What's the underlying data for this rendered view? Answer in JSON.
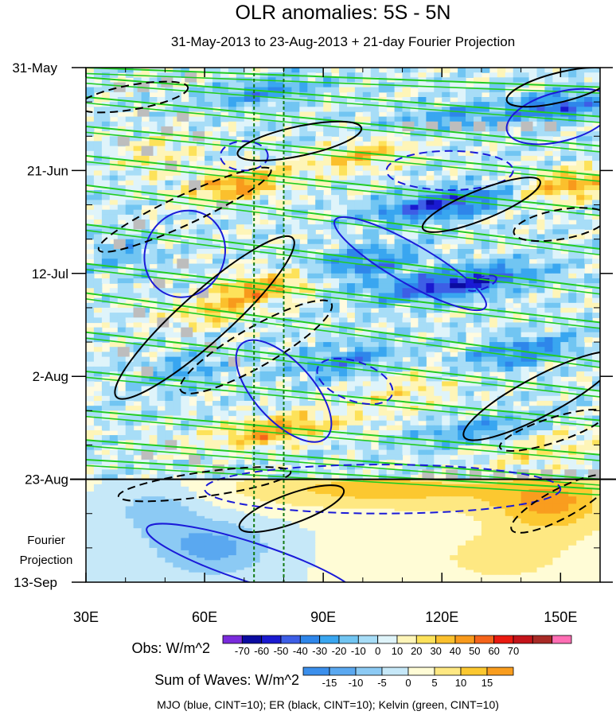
{
  "chart_data": {
    "type": "heatmap",
    "title": "OLR anomalies: 5S - 5N",
    "subtitle": "31-May-2013 to 23-Aug-2013 + 21-day Fourier Projection",
    "x_axis": {
      "range": [
        30,
        160
      ],
      "ticks": [
        30,
        60,
        90,
        120,
        150
      ],
      "tick_labels": [
        "30E",
        "60E",
        "90E",
        "120E",
        "150E"
      ]
    },
    "y_axis": {
      "ticks": [
        0,
        21,
        42,
        63,
        84,
        105
      ],
      "tick_labels": [
        "31-May",
        "21-Jun",
        "12-Jul",
        "2-Aug",
        "23-Aug",
        "13-Sep"
      ],
      "projection_start_day": 84,
      "end_day": 105
    },
    "projection_label_line1": "Fourier",
    "projection_label_line2": "Projection",
    "reference_longitudes": [
      72.5,
      80
    ],
    "obs_colorbar": {
      "label": "Obs: W/m^2",
      "levels": [
        -70,
        -60,
        -50,
        -40,
        -30,
        -20,
        -10,
        0,
        10,
        20,
        30,
        40,
        50,
        60,
        70
      ],
      "colors": [
        "#7a2bdc",
        "#0b0ba0",
        "#1a1ad0",
        "#3d5ee6",
        "#2e86ea",
        "#39a6f0",
        "#71c5f2",
        "#a7ddf7",
        "#dff4fa",
        "#fef5b8",
        "#fde25a",
        "#fbc02d",
        "#f89a1c",
        "#f5641a",
        "#ea1a10",
        "#c4141a",
        "#a82a26",
        "#ff6eb4"
      ]
    },
    "waves_colorbar": {
      "label": "Sum of Waves: W/m^2",
      "levels": [
        -15,
        -10,
        -5,
        0,
        5,
        10,
        15
      ],
      "colors": [
        "#3b8fec",
        "#5aa8f0",
        "#8ccaf4",
        "#c6e8f8",
        "#fffcd6",
        "#fee882",
        "#fcc830",
        "#f99d1e"
      ]
    },
    "footer": "MJO (blue, CINT=10); ER (black, CINT=10); Kelvin (green, CINT=10)",
    "series": [
      {
        "name": "MJO",
        "color": "#1a1ad8"
      },
      {
        "name": "ER",
        "color": "#000000"
      },
      {
        "name": "Kelvin",
        "color": "#22cc22"
      }
    ]
  }
}
